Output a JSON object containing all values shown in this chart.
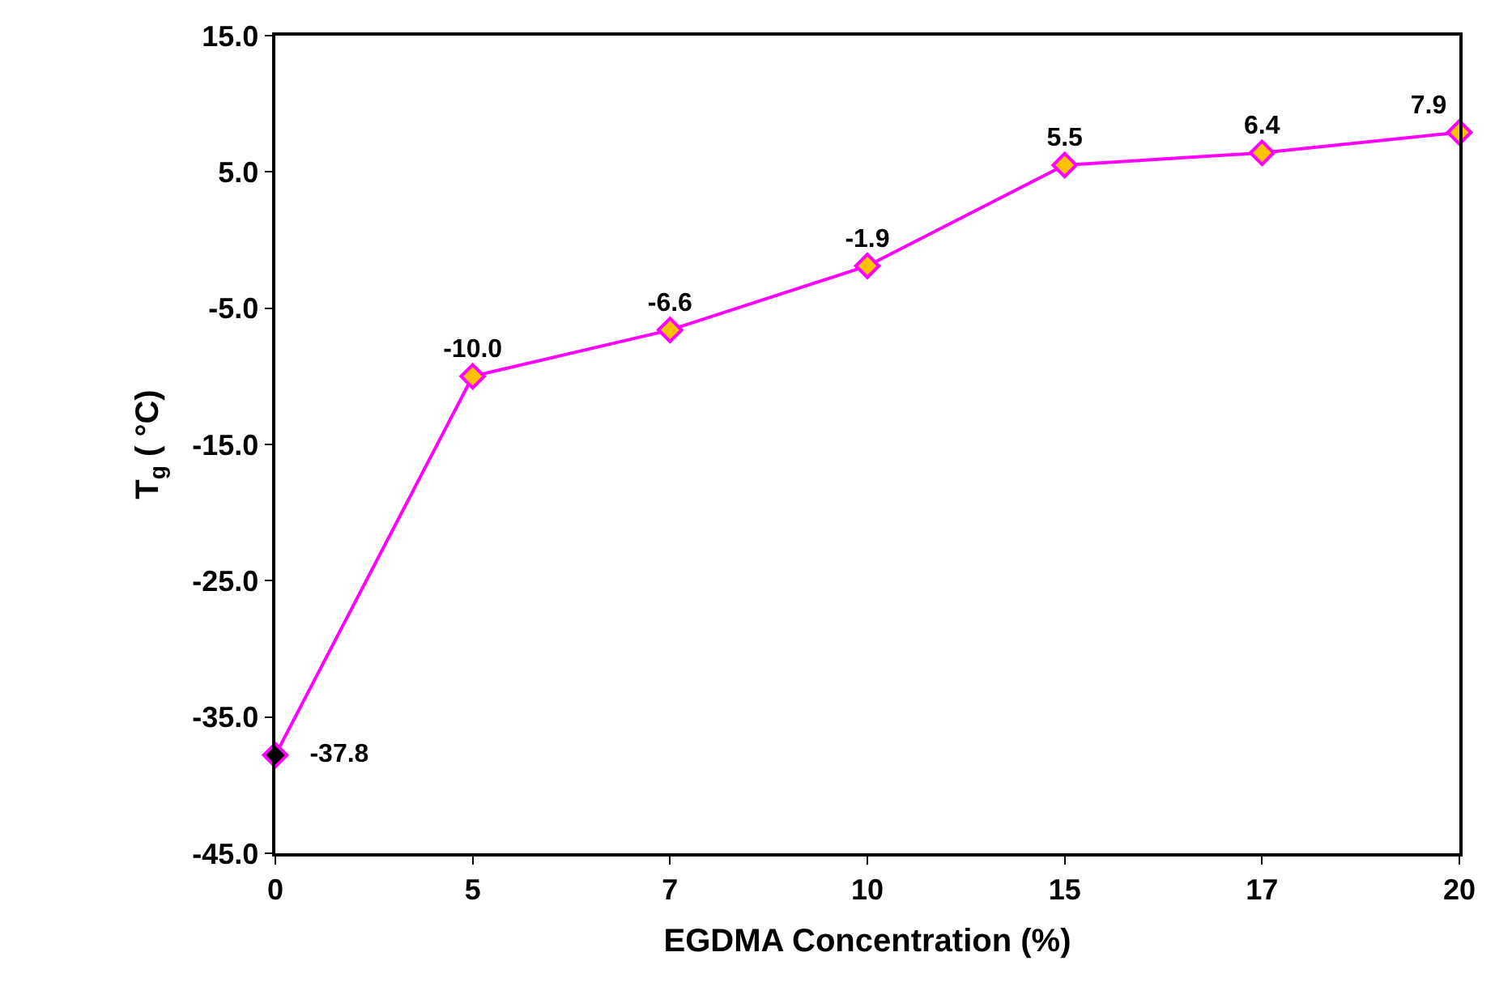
{
  "chart_data": {
    "type": "line",
    "xlabel": "EGDMA Concentration (%)",
    "ylabel": "T$_{g}$ ( °C)",
    "categories": [
      "0",
      "5",
      "7",
      "10",
      "15",
      "17",
      "20"
    ],
    "series": [
      {
        "color": "#ff00ff",
        "values": [
          -37.8,
          -10.0,
          -6.6,
          -1.9,
          5.5,
          6.4,
          7.9
        ],
        "colors": [
          "#000000",
          "#ffc000",
          "#ffc000",
          "#ffc000",
          "#ffc000",
          "#ffc000",
          "#ffc000"
        ]
      }
    ],
    "value_labels": [
      "-37.8",
      "-10.0",
      "-6.6",
      "-1.9",
      "5.5",
      "6.4",
      "7.9"
    ],
    "ylim": [
      -45,
      15
    ],
    "yticks": [
      {
        "value": -45,
        "label": "-45.0"
      },
      {
        "value": -35,
        "label": "-35.0"
      },
      {
        "value": -25,
        "label": "-25.0"
      },
      {
        "value": -15,
        "label": "-15.0"
      },
      {
        "value": -5,
        "label": "-5.0"
      },
      {
        "value": 5,
        "label": "5.0"
      },
      {
        "value": 15,
        "label": "15.0"
      }
    ],
    "marker": "diamond",
    "line_style": "solid",
    "legend": false
  }
}
